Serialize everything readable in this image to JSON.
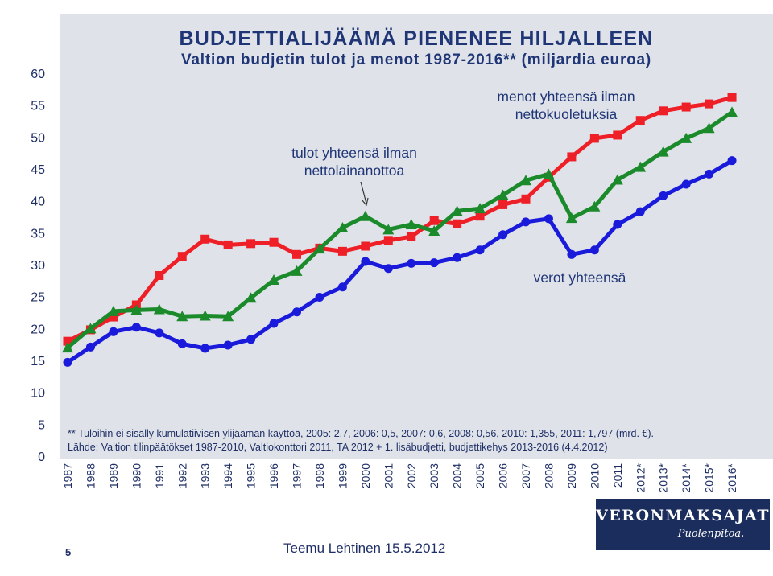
{
  "slide": {
    "title": "BUDJETTIALIJÄÄMÄ PIENENEE HILJALLEEN",
    "subtitle": "Valtion budjetin tulot ja menot 1987-2016** (miljardia euroa)",
    "annotations": {
      "menot_line1": "menot yhteensä ilman",
      "menot_line2": "nettokuoletuksia",
      "tulot_line1": "tulot yhteensä ilman",
      "tulot_line2": "nettolainanottoa",
      "verot": "verot yhteensä"
    },
    "note1": "** Tuloihin ei sisälly kumulatiivisen ylijäämän käyttöä, 2005: 2,7, 2006: 0,5, 2007: 0,6, 2008: 0,56, 2010: 1,355, 2011: 1,797 (mrd. €).",
    "note2": "Lähde: Valtion tilinpäätökset 1987-2010, Valtiokonttori 2011, TA 2012 + 1. lisäbudjetti, budjettikehys  2013-2016 (4.4.2012)",
    "footer": "Teemu Lehtinen 15.5.2012",
    "page_number": "5",
    "logo_main": "VERONMAKSAJAT",
    "logo_sub": "Puolenpitoa."
  },
  "chart_data": {
    "type": "line",
    "categories": [
      "1987",
      "1988",
      "1989",
      "1990",
      "1991",
      "1992",
      "1993",
      "1994",
      "1995",
      "1996",
      "1997",
      "1998",
      "1999",
      "2000",
      "2001",
      "2002",
      "2003",
      "2004",
      "2005",
      "2006",
      "2007",
      "2008",
      "2009",
      "2010",
      "2011",
      "2012*",
      "2013*",
      "2014*",
      "2015*",
      "2016*"
    ],
    "y_ticks": [
      0,
      5,
      10,
      15,
      20,
      25,
      30,
      35,
      40,
      45,
      50,
      55,
      60
    ],
    "ylim": [
      0,
      60
    ],
    "grid": false,
    "series": [
      {
        "key": "menot",
        "color": "#ee1f26",
        "marker": "square",
        "values": [
          18.0,
          19.8,
          21.8,
          23.7,
          28.3,
          31.3,
          34.0,
          33.1,
          33.3,
          33.5,
          31.6,
          32.6,
          32.1,
          32.9,
          33.8,
          34.4,
          36.9,
          36.4,
          37.6,
          39.4,
          40.3,
          43.7,
          46.9,
          49.8,
          50.3,
          52.6,
          54.1,
          54.7,
          55.2,
          56.2
        ]
      },
      {
        "key": "tulot",
        "color": "#1a8a2a",
        "marker": "triangle",
        "values": [
          17.0,
          20.0,
          22.7,
          22.9,
          23.0,
          21.9,
          22.0,
          21.9,
          24.8,
          27.6,
          29.0,
          32.5,
          35.8,
          37.6,
          35.5,
          36.3,
          35.3,
          38.4,
          38.8,
          40.9,
          43.2,
          44.2,
          37.3,
          39.1,
          43.3,
          45.3,
          47.7,
          49.8,
          51.4,
          53.9
        ]
      },
      {
        "key": "verot",
        "color": "#1a1adb",
        "marker": "circle",
        "values": [
          14.7,
          17.1,
          19.5,
          20.2,
          19.3,
          17.6,
          16.9,
          17.4,
          18.3,
          20.8,
          22.6,
          24.9,
          26.5,
          30.5,
          29.4,
          30.2,
          30.3,
          31.1,
          32.3,
          34.7,
          36.7,
          37.2,
          31.6,
          32.3,
          36.3,
          38.3,
          40.8,
          42.6,
          44.2,
          46.3
        ]
      }
    ]
  }
}
